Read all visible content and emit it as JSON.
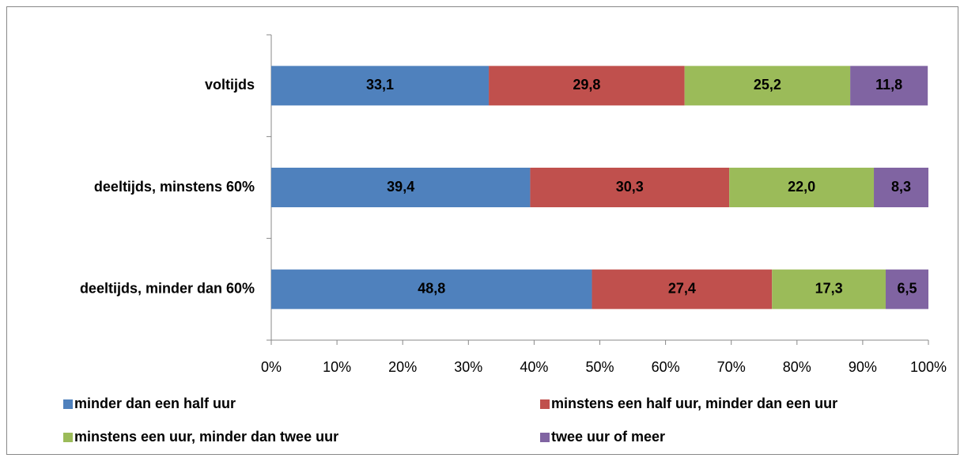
{
  "chart_data": {
    "type": "stacked-bar-horizontal",
    "categories": [
      "voltijds",
      "deeltijds, minstens 60%",
      "deeltijds, minder dan 60%"
    ],
    "series": [
      {
        "name": "minder dan een half uur",
        "color": "#4f81bd",
        "values": [
          33.1,
          39.4,
          48.8
        ],
        "value_labels": [
          "33,1",
          "39,4",
          "48,8"
        ]
      },
      {
        "name": "minstens een half uur, minder dan een uur",
        "color": "#c0504d",
        "values": [
          29.8,
          30.3,
          27.4
        ],
        "value_labels": [
          "29,8",
          "30,3",
          "27,4"
        ]
      },
      {
        "name": "minstens een uur, minder dan twee uur",
        "color": "#9bbb59",
        "values": [
          25.2,
          22.0,
          17.3
        ],
        "value_labels": [
          "25,2",
          "22,0",
          "17,3"
        ]
      },
      {
        "name": "twee uur of meer",
        "color": "#8064a2",
        "values": [
          11.8,
          8.3,
          6.5
        ],
        "value_labels": [
          "11,8",
          "8,3",
          "6,5"
        ]
      }
    ],
    "xlim": [
      0,
      100
    ],
    "xticks": [
      {
        "value": 0,
        "label": "0%"
      },
      {
        "value": 10,
        "label": "10%"
      },
      {
        "value": 20,
        "label": "20%"
      },
      {
        "value": 30,
        "label": "30%"
      },
      {
        "value": 40,
        "label": "40%"
      },
      {
        "value": 50,
        "label": "50%"
      },
      {
        "value": 60,
        "label": "60%"
      },
      {
        "value": 70,
        "label": "70%"
      },
      {
        "value": 80,
        "label": "80%"
      },
      {
        "value": 90,
        "label": "90%"
      },
      {
        "value": 100,
        "label": "100%"
      }
    ],
    "legend": "bottom"
  }
}
